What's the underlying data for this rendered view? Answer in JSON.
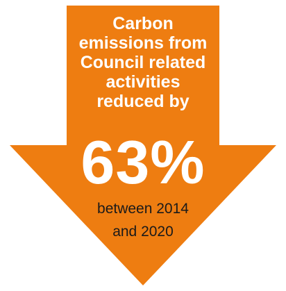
{
  "colors": {
    "arrow": "#EE7D11",
    "headline_text": "#FFFFFF",
    "stat_text": "#FFFFFF",
    "subline_text": "#1A1A1A"
  },
  "headline": {
    "lines": [
      "Carbon",
      "emissions from",
      "Council related",
      "activities",
      "reduced by"
    ]
  },
  "stat": {
    "value": "63%"
  },
  "subline": {
    "lines": [
      "between 2014",
      "and 2020"
    ]
  },
  "icons": {
    "arrow": "down-arrow-icon"
  }
}
